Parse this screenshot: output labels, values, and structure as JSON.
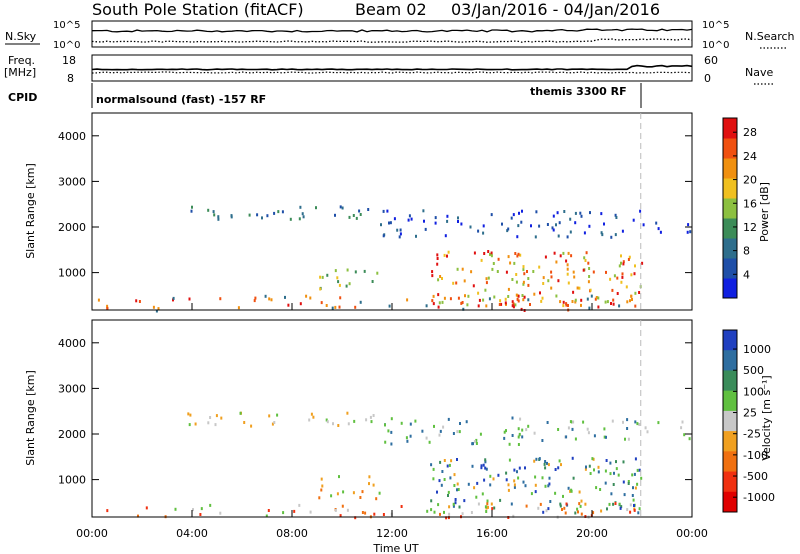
{
  "header": {
    "station": "South Pole Station (fitACF)",
    "beam": "Beam 02",
    "date_range": "03/Jan/2016 - 04/Jan/2016"
  },
  "strip": {
    "nsky_label": "N.Sky",
    "nsearch_label": "N.Search",
    "noise_ticks_left": [
      "10^5",
      "10^0"
    ],
    "noise_ticks_right": [
      "10^5",
      "10^0"
    ],
    "freq_label_top": "Freq.",
    "freq_label_unit": "[MHz]",
    "freq_ticks": [
      "18",
      "8"
    ],
    "nave_label": "Nave",
    "nave_ticks": [
      "60",
      "0"
    ],
    "cpid_label": "CPID",
    "cpid_segments": [
      "normalsound (fast) -157 RF",
      "themis 3300 RF"
    ]
  },
  "xaxis": {
    "label": "Time UT",
    "ticks": [
      "00:00",
      "04:00",
      "08:00",
      "12:00",
      "16:00",
      "20:00",
      "00:00"
    ]
  },
  "colors": {
    "power_scale": [
      "#1020e0",
      "#1f4fa8",
      "#2e6e8c",
      "#3c8c58",
      "#8cc040",
      "#f0c020",
      "#f09010",
      "#f05010",
      "#e01010"
    ],
    "velocity_scale": [
      "#2040c0",
      "#2e6ea0",
      "#3a8c5a",
      "#60c040",
      "#c8c8c8",
      "#f0a020",
      "#f07010",
      "#f03010",
      "#e00000"
    ]
  },
  "chart_data": [
    {
      "type": "heatmap",
      "panel": "power",
      "ylabel": "Slant Range [km]",
      "ylim": [
        180,
        4500
      ],
      "yticks": [
        "1000",
        "2000",
        "3000",
        "4000"
      ],
      "xlim_hours": [
        0,
        24
      ],
      "colorbar_label": "Power [dB]",
      "colorbar_ticks": [
        "4",
        "8",
        "12",
        "16",
        "20",
        "24",
        "28"
      ],
      "colorbar_range": [
        0,
        30
      ]
    },
    {
      "type": "heatmap",
      "panel": "velocity",
      "ylabel": "Slant Range [km]",
      "ylim": [
        180,
        4500
      ],
      "yticks": [
        "1000",
        "2000",
        "3000",
        "4000"
      ],
      "xlim_hours": [
        0,
        24
      ],
      "colorbar_label": "Velocity [m s⁻¹]",
      "colorbar_ticks": [
        "1000",
        "500",
        "100",
        "25",
        "-25",
        "-100",
        "-500",
        "-1000"
      ]
    }
  ]
}
